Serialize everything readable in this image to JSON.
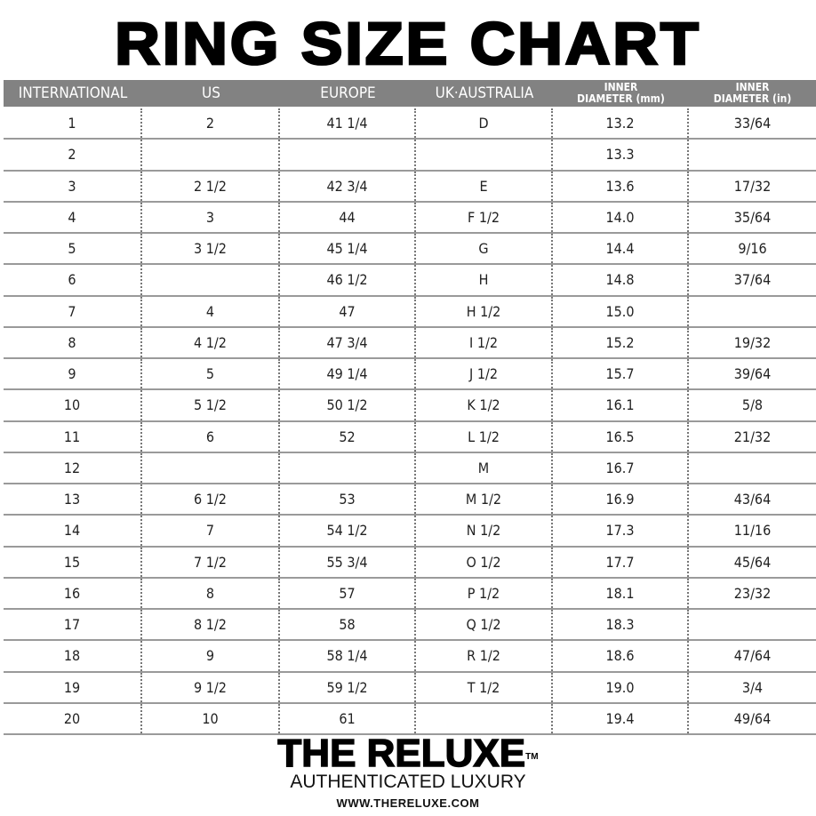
{
  "title": "RING SIZE CHART",
  "headers": [
    "INTERNATIONAL",
    "US",
    "EUROPE",
    "UK·AUSTRALIA",
    "INNER DIAMETER (mm)",
    "INNER DIAMETER (in)"
  ],
  "rows": [
    [
      "1",
      "2",
      "41 1/4",
      "D",
      "13.2",
      "33/64"
    ],
    [
      "2",
      "",
      "",
      "",
      "13.3",
      ""
    ],
    [
      "3",
      "2 1/2",
      "42 3/4",
      "E",
      "13.6",
      "17/32"
    ],
    [
      "4",
      "3",
      "44",
      "F 1/2",
      "14.0",
      "35/64"
    ],
    [
      "5",
      "3 1/2",
      "45 1/4",
      "G",
      "14.4",
      "9/16"
    ],
    [
      "6",
      "",
      "46 1/2",
      "H",
      "14.8",
      "37/64"
    ],
    [
      "7",
      "4",
      "47",
      "H 1/2",
      "15.0",
      ""
    ],
    [
      "8",
      "4 1/2",
      "47 3/4",
      "I 1/2",
      "15.2",
      "19/32"
    ],
    [
      "9",
      "5",
      "49 1/4",
      "J 1/2",
      "15.7",
      "39/64"
    ],
    [
      "10",
      "5 1/2",
      "50 1/2",
      "K 1/2",
      "16.1",
      "5/8"
    ],
    [
      "11",
      "6",
      "52",
      "L 1/2",
      "16.5",
      "21/32"
    ],
    [
      "12",
      "",
      "",
      "M",
      "16.7",
      ""
    ],
    [
      "13",
      "6 1/2",
      "53",
      "M 1/2",
      "16.9",
      "43/64"
    ],
    [
      "14",
      "7",
      "54 1/2",
      "N 1/2",
      "17.3",
      "11/16"
    ],
    [
      "15",
      "7 1/2",
      "55 3/4",
      "O 1/2",
      "17.7",
      "45/64"
    ],
    [
      "16",
      "8",
      "57",
      "P 1/2",
      "18.1",
      "23/32"
    ],
    [
      "17",
      "8 1/2",
      "58",
      "Q 1/2",
      "18.3",
      ""
    ],
    [
      "18",
      "9",
      "58 1/4",
      "R 1/2",
      "18.6",
      "47/64"
    ],
    [
      "19",
      "9 1/2",
      "59 1/2",
      "T 1/2",
      "19.0",
      "3/4"
    ],
    [
      "20",
      "10",
      "61",
      "",
      "19.4",
      "49/64"
    ]
  ],
  "footer": {
    "brand": "THE RELUXE",
    "trademark": "TM",
    "tagline": "AUTHENTICATED LUXURY",
    "url": "WWW.THERELUXE.COM"
  },
  "colors": {
    "header_bg": "#828282",
    "row_line": "#9a9a9a"
  }
}
